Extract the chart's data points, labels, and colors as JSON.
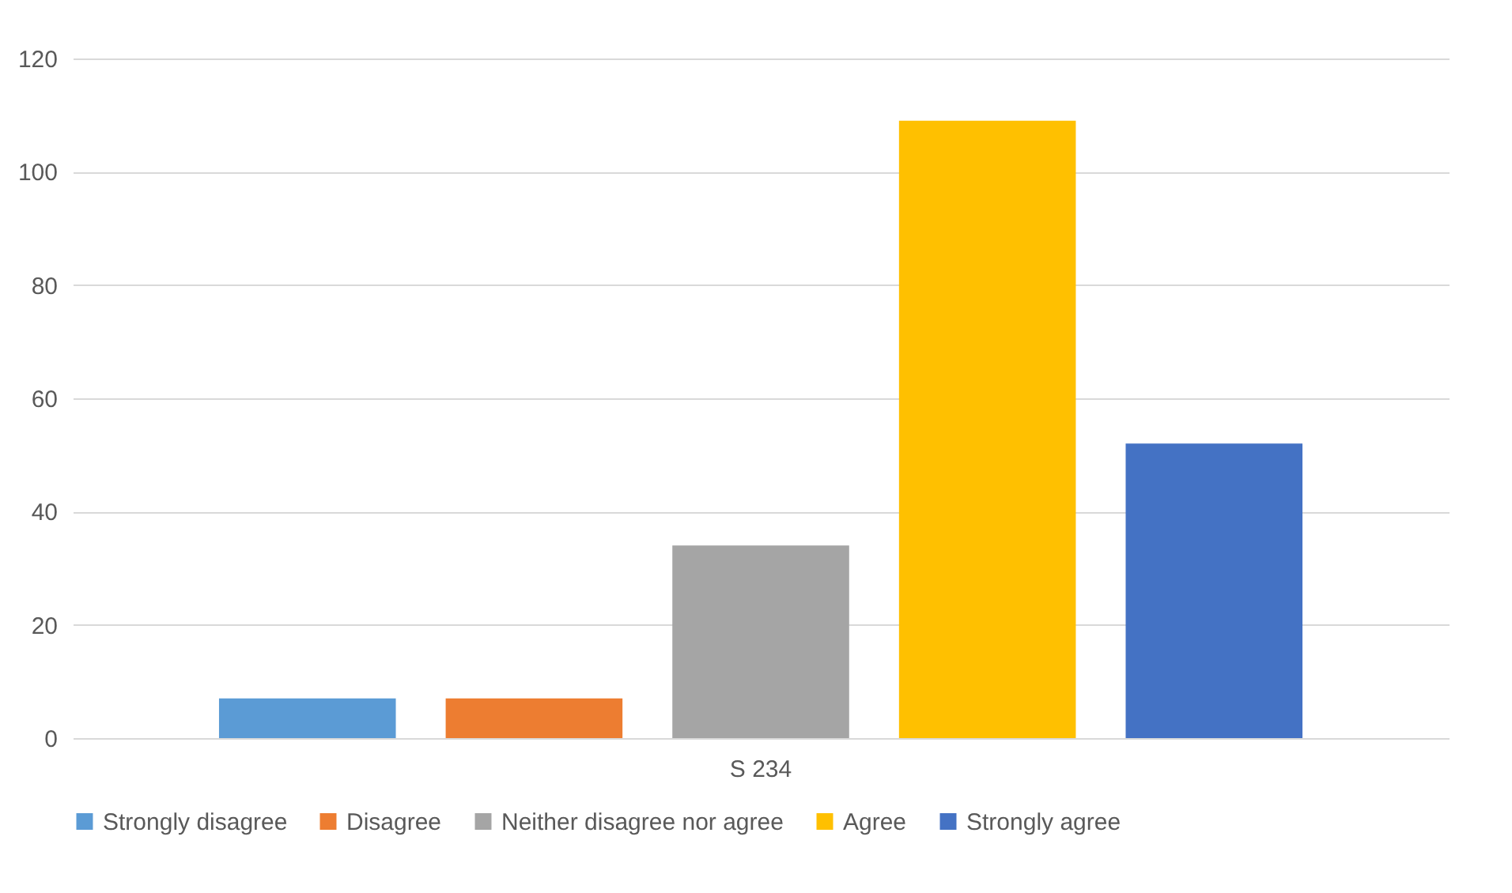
{
  "chart_data": {
    "type": "bar",
    "categories": [
      "S 234"
    ],
    "series": [
      {
        "name": "Strongly disagree",
        "color": "#5b9bd5",
        "values": [
          7
        ]
      },
      {
        "name": "Disagree",
        "color": "#ed7d31",
        "values": [
          7
        ]
      },
      {
        "name": "Neither disagree nor agree",
        "color": "#a5a5a5",
        "values": [
          34
        ]
      },
      {
        "name": "Agree",
        "color": "#ffc000",
        "values": [
          109
        ]
      },
      {
        "name": "Strongly agree",
        "color": "#4472c4",
        "values": [
          52
        ]
      }
    ],
    "ylim": [
      0,
      120
    ],
    "yticks": [
      0,
      20,
      40,
      60,
      80,
      100,
      120
    ],
    "grid": "y",
    "legend": "bottom"
  }
}
